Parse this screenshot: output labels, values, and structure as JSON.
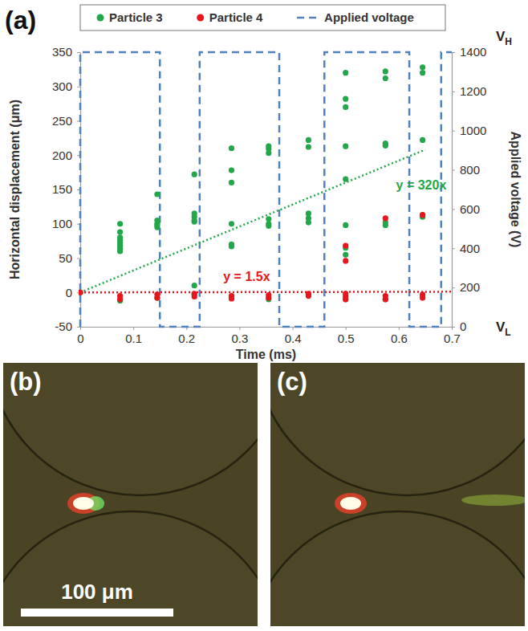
{
  "chart_data": {
    "type": "scatter",
    "panel_label": "(a)",
    "x_label": "Time (ms)",
    "y_label": "Horizontal displacement (μm)",
    "y2_label": "Applied voltage (V)",
    "xlim": [
      0,
      0.7
    ],
    "xticks": [
      0,
      0.1,
      0.2,
      0.3,
      0.4,
      0.5,
      0.6,
      0.7
    ],
    "ylim": [
      -50,
      350
    ],
    "yticks": [
      -50,
      0,
      50,
      100,
      150,
      200,
      250,
      300,
      350
    ],
    "y2lim": [
      0,
      1400
    ],
    "y2ticks": [
      0,
      200,
      400,
      600,
      800,
      1000,
      1200,
      1400
    ],
    "grid": false,
    "legend": "top",
    "series": [
      {
        "name": "Particle 3",
        "type": "scatter",
        "color": "#22a84a",
        "marker": "circle",
        "x": [
          0,
          0.075,
          0.075,
          0.075,
          0.075,
          0.075,
          0.075,
          0.075,
          0.075,
          0.075,
          0.145,
          0.145,
          0.145,
          0.145,
          0.145,
          0.145,
          0.215,
          0.215,
          0.215,
          0.215,
          0.215,
          0.215,
          0.215,
          0.285,
          0.285,
          0.285,
          0.285,
          0.285,
          0.285,
          0.285,
          0.355,
          0.355,
          0.355,
          0.355,
          0.355,
          0.355,
          0.355,
          0.43,
          0.43,
          0.43,
          0.43,
          0.43,
          0.43,
          0.5,
          0.5,
          0.5,
          0.5,
          0.5,
          0.5,
          0.5,
          0.5,
          0.5,
          0.575,
          0.575,
          0.575,
          0.575,
          0.575,
          0.575,
          0.575,
          0.645,
          0.645,
          0.645,
          0.645,
          0.645,
          0.645
        ],
        "values": [
          0,
          100,
          88,
          80,
          76,
          72,
          68,
          64,
          60,
          -12,
          143,
          105,
          100,
          98,
          95,
          -8,
          172,
          115,
          110,
          105,
          103,
          10,
          -3,
          210,
          178,
          160,
          100,
          70,
          67,
          -7,
          213,
          209,
          203,
          107,
          100,
          97,
          -10,
          222,
          212,
          115,
          108,
          102,
          -3,
          320,
          282,
          270,
          213,
          165,
          98,
          65,
          55,
          -10,
          322,
          312,
          217,
          214,
          102,
          98,
          -10,
          328,
          320,
          222,
          113,
          110,
          -5
        ]
      },
      {
        "name": "Particle 4",
        "type": "scatter",
        "color": "#e8161c",
        "marker": "circle",
        "x": [
          0,
          0.075,
          0.075,
          0.145,
          0.145,
          0.215,
          0.215,
          0.285,
          0.285,
          0.355,
          0.355,
          0.43,
          0.43,
          0.5,
          0.5,
          0.5,
          0.5,
          0.5,
          0.575,
          0.575,
          0.575,
          0.645,
          0.645,
          0.645
        ],
        "values": [
          0,
          -5,
          -10,
          -3,
          -8,
          -2,
          -6,
          -5,
          -9,
          -4,
          -8,
          -2,
          -5,
          68,
          46,
          -2,
          -6,
          -10,
          108,
          -5,
          -10,
          113,
          -3,
          -8
        ]
      },
      {
        "name": "Applied voltage",
        "type": "step",
        "axis": "y2",
        "color": "#4f81bd",
        "line_style": "dashed",
        "x": [
          0,
          0,
          0.15,
          0.225,
          0.375,
          0.46,
          0.62,
          0.68,
          0.7
        ],
        "values": [
          0,
          1400,
          0,
          1400,
          0,
          1400,
          0,
          1400,
          1400
        ]
      }
    ],
    "trendlines": [
      {
        "label": "y = 320x",
        "color": "#22a84a",
        "line_style": "dotted",
        "x": [
          0,
          0.65
        ],
        "values": [
          0,
          208
        ]
      },
      {
        "label": "y = 1.5x",
        "color": "#e8161c",
        "line_style": "dotted",
        "x": [
          0,
          0.7
        ],
        "values": [
          0,
          1.05
        ]
      }
    ],
    "annotations": [
      {
        "text": "VH",
        "y2": 1400
      },
      {
        "text": "VL",
        "y2": 0
      }
    ]
  },
  "images": [
    {
      "label": "(b)",
      "scale_bar": "100 μm"
    },
    {
      "label": "(c)"
    }
  ]
}
